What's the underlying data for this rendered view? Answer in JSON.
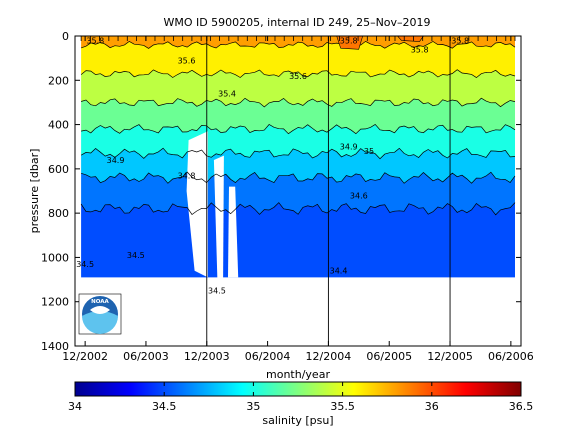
{
  "chart_data": {
    "type": "heatmap",
    "title": "WMO ID 5900205, internal ID 249, 25–Nov–2019",
    "xlabel": "month/year",
    "ylabel": "pressure [dbar]",
    "x_ticks": [
      "12/2002",
      "06/2003",
      "12/2003",
      "06/2004",
      "12/2004",
      "06/2005",
      "12/2005",
      "06/2006"
    ],
    "y_ticks": [
      0,
      200,
      400,
      600,
      800,
      1000,
      1200,
      1400
    ],
    "ylim": [
      1400,
      0
    ],
    "y_reversed": true,
    "xlim": [
      "2002-11",
      "2006-07"
    ],
    "colorbar": {
      "label": "salinity [psu]",
      "ticks": [
        34,
        34.5,
        35,
        35.5,
        36,
        36.5
      ],
      "range": [
        34,
        36.5
      ],
      "colormap": "jet"
    },
    "profile_depth_max": 1090,
    "salinity_layers": [
      {
        "level": 35.8,
        "depth_top": 0,
        "depth_bottom": 40
      },
      {
        "level": 35.6,
        "depth_top": 40,
        "depth_bottom": 170
      },
      {
        "level": 35.4,
        "depth_top": 170,
        "depth_bottom": 300
      },
      {
        "level": 35.2,
        "depth_top": 300,
        "depth_bottom": 420
      },
      {
        "level": 35.0,
        "depth_top": 420,
        "depth_bottom": 530
      },
      {
        "level": 34.8,
        "depth_top": 530,
        "depth_bottom": 640
      },
      {
        "level": 34.6,
        "depth_top": 640,
        "depth_bottom": 780
      },
      {
        "level": 34.5,
        "depth_top": 780,
        "depth_bottom": 1090
      }
    ],
    "contour_labels": [
      {
        "text": "35.8",
        "x": "2003-01",
        "y": 20
      },
      {
        "text": "35.6",
        "x": "2003-10",
        "y": 110
      },
      {
        "text": "35.4",
        "x": "2004-02",
        "y": 260
      },
      {
        "text": "35.6",
        "x": "2004-09",
        "y": 180
      },
      {
        "text": "35.8",
        "x": "2005-02",
        "y": 20
      },
      {
        "text": "35.8",
        "x": "2005-09",
        "y": 60
      },
      {
        "text": "35.8",
        "x": "2006-01",
        "y": 20
      },
      {
        "text": "34.9",
        "x": "2003-03",
        "y": 560
      },
      {
        "text": "34.8",
        "x": "2003-10",
        "y": 630
      },
      {
        "text": "34.9",
        "x": "2005-02",
        "y": 500
      },
      {
        "text": "35",
        "x": "2005-04",
        "y": 520
      },
      {
        "text": "34.6",
        "x": "2005-03",
        "y": 720
      },
      {
        "text": "34.5",
        "x": "2003-05",
        "y": 990
      },
      {
        "text": "34.5",
        "x": "2002-12",
        "y": 1030
      },
      {
        "text": "34.4",
        "x": "2005-01",
        "y": 1060
      },
      {
        "text": "34.5",
        "x": "2004-01",
        "y": 1150
      }
    ],
    "vertical_lines": [
      "2003-12",
      "2004-12",
      "2005-12"
    ]
  },
  "logo": {
    "text": "NOAA"
  },
  "colors": {
    "axes": "#000000",
    "background": "#ffffff"
  }
}
